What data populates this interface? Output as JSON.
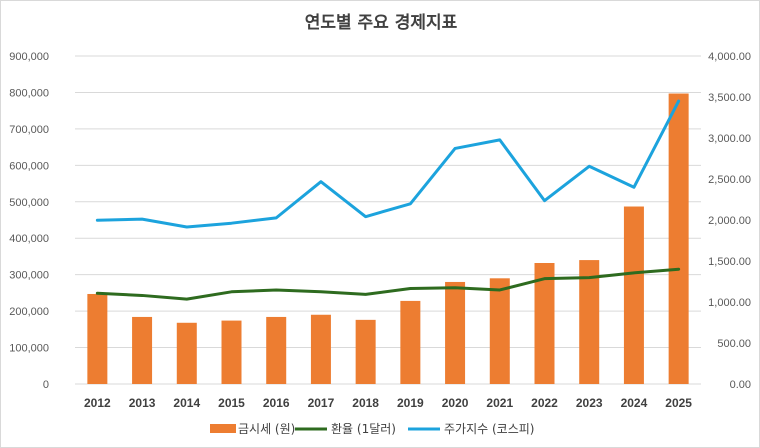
{
  "chart_data": {
    "type": "bar+line",
    "title": "연도별 주요 경제지표",
    "categories": [
      "2012",
      "2013",
      "2014",
      "2015",
      "2016",
      "2017",
      "2018",
      "2019",
      "2020",
      "2021",
      "2022",
      "2023",
      "2024",
      "2025"
    ],
    "left_axis": {
      "min": 0,
      "max": 900000,
      "step": 100000,
      "ticks": [
        "0",
        "100,000",
        "200,000",
        "300,000",
        "400,000",
        "500,000",
        "600,000",
        "700,000",
        "800,000",
        "900,000"
      ]
    },
    "right_axis": {
      "min": 0,
      "max": 4000,
      "step": 500,
      "ticks": [
        "0.00",
        "500.00",
        "1,000.00",
        "1,500.00",
        "2,000.00",
        "2,500.00",
        "3,000.00",
        "3,500.00",
        "4,000.00"
      ]
    },
    "series": [
      {
        "name": "금시세 (원)",
        "kind": "bar",
        "axis": "left",
        "color": "#ED7D31",
        "values": [
          247000,
          184000,
          168000,
          174000,
          184000,
          190000,
          176000,
          228000,
          280000,
          290000,
          332000,
          340000,
          487000,
          797000
        ]
      },
      {
        "name": "환율 (1달러)",
        "kind": "line",
        "axis": "left",
        "color": "#2E6B1F",
        "values": [
          249000,
          243000,
          233000,
          253000,
          258000,
          253000,
          246000,
          262000,
          264000,
          258000,
          289000,
          292000,
          305000,
          315000
        ]
      },
      {
        "name": "주가지수 (코스피)",
        "kind": "line",
        "axis": "right",
        "color": "#1CA3DD",
        "values": [
          1997,
          2011,
          1915,
          1961,
          2026,
          2467,
          2041,
          2197,
          2873,
          2977,
          2236,
          2655,
          2399,
          3450
        ]
      }
    ],
    "legend_position": "bottom"
  }
}
